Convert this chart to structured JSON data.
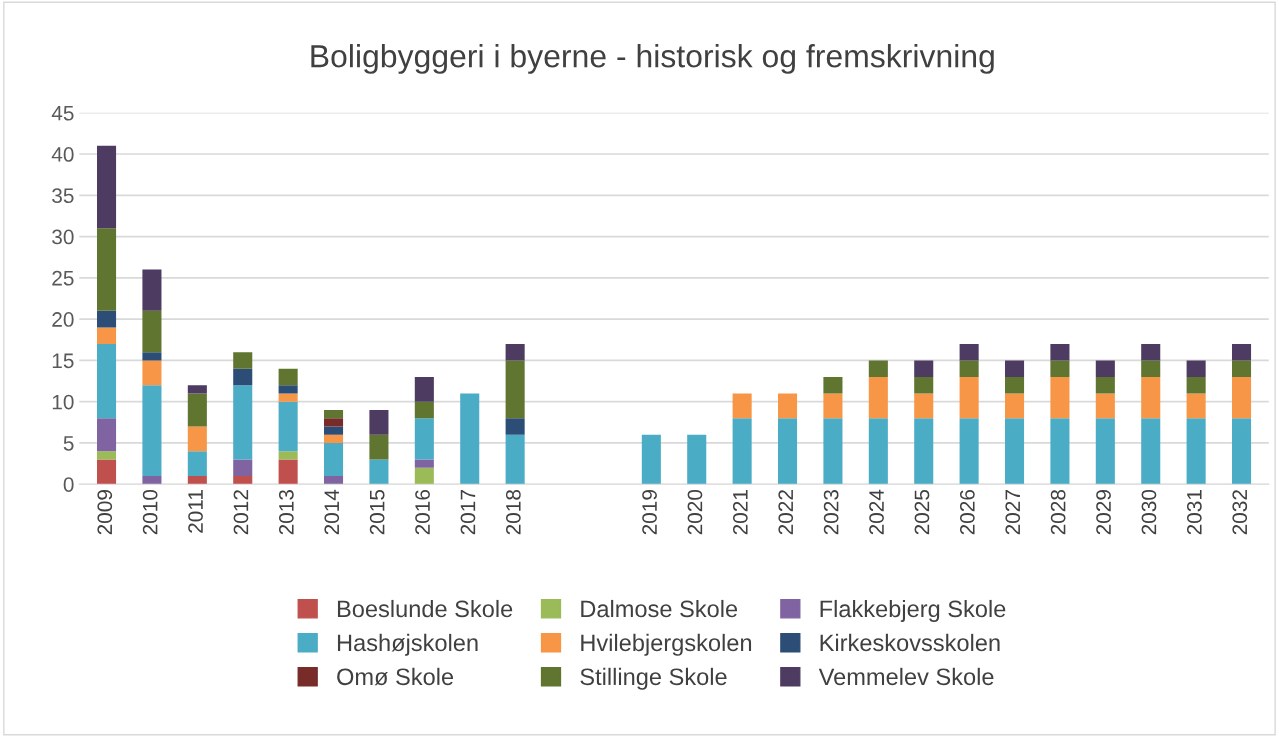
{
  "chart_data": {
    "type": "bar",
    "title": "Boligbyggeri i byerne - historisk og fremskrivning",
    "stacked": true,
    "categories": [
      "2009",
      "2010",
      "2011",
      "2012",
      "2013",
      "2014",
      "2015",
      "2016",
      "2017",
      "2018",
      null,
      null,
      "2019",
      "2020",
      "2021",
      "2022",
      "2023",
      "2024",
      "2025",
      "2026",
      "2027",
      "2028",
      "2029",
      "2030",
      "2031",
      "2032"
    ],
    "series": [
      {
        "name": "Boeslunde Skole",
        "color": "#c0504d",
        "values": [
          3,
          0,
          1,
          1,
          3,
          0,
          0,
          0,
          0,
          0,
          null,
          null,
          0,
          0,
          0,
          0,
          0,
          0,
          0,
          0,
          0,
          0,
          0,
          0,
          0,
          0
        ]
      },
      {
        "name": "Dalmose Skole",
        "color": "#9bbb59",
        "values": [
          1,
          0,
          0,
          0,
          1,
          0,
          0,
          2,
          0,
          0,
          null,
          null,
          0,
          0,
          0,
          0,
          0,
          0,
          0,
          0,
          0,
          0,
          0,
          0,
          0,
          0
        ]
      },
      {
        "name": "Flakkebjerg Skole",
        "color": "#8064a2",
        "values": [
          4,
          1,
          0,
          2,
          0,
          1,
          0,
          1,
          0,
          0,
          null,
          null,
          0,
          0,
          0,
          0,
          0,
          0,
          0,
          0,
          0,
          0,
          0,
          0,
          0,
          0
        ]
      },
      {
        "name": "Hashøjskolen",
        "color": "#4bacc6",
        "values": [
          9,
          11,
          3,
          9,
          6,
          4,
          3,
          5,
          11,
          6,
          null,
          null,
          6,
          6,
          8,
          8,
          8,
          8,
          8,
          8,
          8,
          8,
          8,
          8,
          8,
          8
        ]
      },
      {
        "name": "Hvilebjergskolen",
        "color": "#f79646",
        "values": [
          2,
          3,
          3,
          0,
          1,
          1,
          0,
          0,
          0,
          0,
          null,
          null,
          0,
          0,
          3,
          3,
          3,
          5,
          3,
          5,
          3,
          5,
          3,
          5,
          3,
          5
        ]
      },
      {
        "name": "Kirkeskovsskolen",
        "color": "#2c4d75",
        "values": [
          2,
          1,
          0,
          2,
          1,
          1,
          0,
          0,
          0,
          2,
          null,
          null,
          0,
          0,
          0,
          0,
          0,
          0,
          0,
          0,
          0,
          0,
          0,
          0,
          0,
          0
        ]
      },
      {
        "name": "Omø Skole",
        "color": "#772c2a",
        "values": [
          0,
          0,
          0,
          0,
          0,
          1,
          0,
          0,
          0,
          0,
          null,
          null,
          0,
          0,
          0,
          0,
          0,
          0,
          0,
          0,
          0,
          0,
          0,
          0,
          0,
          0
        ]
      },
      {
        "name": "Stillinge Skole",
        "color": "#5f7530",
        "values": [
          10,
          5,
          4,
          2,
          2,
          1,
          3,
          2,
          0,
          7,
          null,
          null,
          0,
          0,
          0,
          0,
          2,
          2,
          2,
          2,
          2,
          2,
          2,
          2,
          2,
          2
        ]
      },
      {
        "name": "Vemmelev Skole",
        "color": "#4d3b62",
        "values": [
          10,
          5,
          1,
          0,
          0,
          0,
          3,
          3,
          0,
          2,
          null,
          null,
          0,
          0,
          0,
          0,
          0,
          0,
          2,
          2,
          2,
          2,
          2,
          2,
          2,
          2
        ]
      }
    ],
    "ylim": [
      0,
      45
    ],
    "yticks": [
      0,
      5,
      10,
      15,
      20,
      25,
      30,
      35,
      40,
      45
    ],
    "grid": "y",
    "legend": "bottom"
  }
}
